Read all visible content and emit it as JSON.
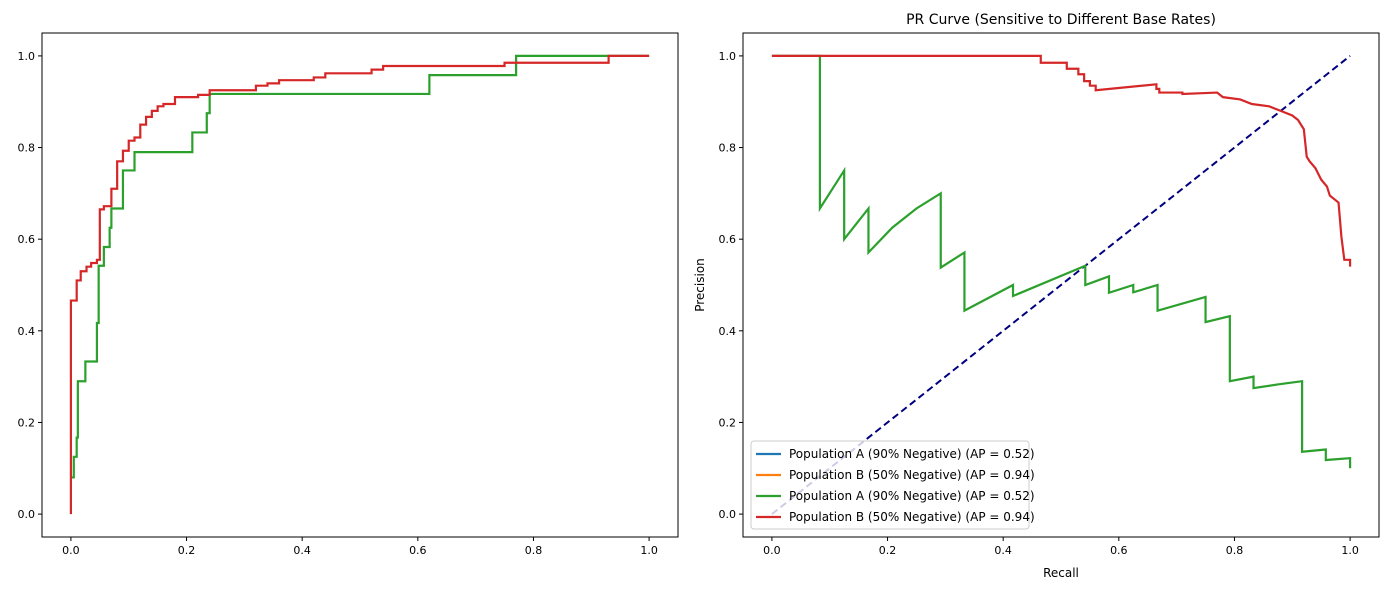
{
  "chart_data": [
    {
      "type": "line",
      "title": "",
      "xlabel": "",
      "ylabel": "",
      "xlim": [
        -0.05,
        1.05
      ],
      "ylim": [
        -0.05,
        1.05
      ],
      "xticks": [
        "0.0",
        "0.2",
        "0.4",
        "0.6",
        "0.8",
        "1.0"
      ],
      "yticks": [
        "0.0",
        "0.2",
        "0.4",
        "0.6",
        "0.8",
        "1.0"
      ],
      "grid": false,
      "series": [
        {
          "color": "#2ca02c",
          "points": [
            [
              0,
              0.08
            ],
            [
              0.005,
              0.08
            ],
            [
              0.005,
              0.125
            ],
            [
              0.01,
              0.125
            ],
            [
              0.01,
              0.167
            ],
            [
              0.012,
              0.167
            ],
            [
              0.012,
              0.29
            ],
            [
              0.025,
              0.29
            ],
            [
              0.025,
              0.333
            ],
            [
              0.045,
              0.333
            ],
            [
              0.045,
              0.417
            ],
            [
              0.048,
              0.417
            ],
            [
              0.048,
              0.542
            ],
            [
              0.057,
              0.542
            ],
            [
              0.057,
              0.583
            ],
            [
              0.067,
              0.583
            ],
            [
              0.067,
              0.625
            ],
            [
              0.07,
              0.625
            ],
            [
              0.07,
              0.667
            ],
            [
              0.09,
              0.667
            ],
            [
              0.09,
              0.75
            ],
            [
              0.11,
              0.75
            ],
            [
              0.11,
              0.79
            ],
            [
              0.21,
              0.79
            ],
            [
              0.21,
              0.833
            ],
            [
              0.235,
              0.833
            ],
            [
              0.235,
              0.875
            ],
            [
              0.24,
              0.875
            ],
            [
              0.24,
              0.917
            ],
            [
              0.62,
              0.917
            ],
            [
              0.62,
              0.958
            ],
            [
              0.77,
              0.958
            ],
            [
              0.77,
              1.0
            ],
            [
              1.0,
              1.0
            ]
          ]
        },
        {
          "color": "#d62728",
          "points": [
            [
              0,
              0
            ],
            [
              0,
              0.466
            ],
            [
              0.01,
              0.466
            ],
            [
              0.01,
              0.51
            ],
            [
              0.017,
              0.51
            ],
            [
              0.017,
              0.53
            ],
            [
              0.027,
              0.53
            ],
            [
              0.027,
              0.54
            ],
            [
              0.035,
              0.54
            ],
            [
              0.035,
              0.548
            ],
            [
              0.045,
              0.548
            ],
            [
              0.045,
              0.555
            ],
            [
              0.05,
              0.555
            ],
            [
              0.05,
              0.665
            ],
            [
              0.057,
              0.665
            ],
            [
              0.057,
              0.672
            ],
            [
              0.07,
              0.672
            ],
            [
              0.07,
              0.71
            ],
            [
              0.08,
              0.71
            ],
            [
              0.08,
              0.77
            ],
            [
              0.09,
              0.77
            ],
            [
              0.09,
              0.793
            ],
            [
              0.1,
              0.793
            ],
            [
              0.1,
              0.815
            ],
            [
              0.11,
              0.815
            ],
            [
              0.11,
              0.822
            ],
            [
              0.12,
              0.822
            ],
            [
              0.12,
              0.85
            ],
            [
              0.13,
              0.85
            ],
            [
              0.13,
              0.867
            ],
            [
              0.14,
              0.867
            ],
            [
              0.14,
              0.88
            ],
            [
              0.15,
              0.88
            ],
            [
              0.15,
              0.89
            ],
            [
              0.16,
              0.89
            ],
            [
              0.16,
              0.895
            ],
            [
              0.18,
              0.895
            ],
            [
              0.18,
              0.91
            ],
            [
              0.22,
              0.91
            ],
            [
              0.22,
              0.915
            ],
            [
              0.24,
              0.915
            ],
            [
              0.24,
              0.925
            ],
            [
              0.32,
              0.925
            ],
            [
              0.32,
              0.935
            ],
            [
              0.34,
              0.935
            ],
            [
              0.34,
              0.94
            ],
            [
              0.36,
              0.94
            ],
            [
              0.36,
              0.947
            ],
            [
              0.42,
              0.947
            ],
            [
              0.42,
              0.953
            ],
            [
              0.44,
              0.953
            ],
            [
              0.44,
              0.962
            ],
            [
              0.52,
              0.962
            ],
            [
              0.52,
              0.97
            ],
            [
              0.54,
              0.97
            ],
            [
              0.54,
              0.978
            ],
            [
              0.75,
              0.978
            ],
            [
              0.75,
              0.985
            ],
            [
              0.93,
              0.985
            ],
            [
              0.93,
              1.0
            ],
            [
              1.0,
              1.0
            ]
          ]
        }
      ]
    },
    {
      "type": "line",
      "title": "PR Curve (Sensitive to Different Base Rates)",
      "xlabel": "Recall",
      "ylabel": "Precision",
      "xlim": [
        -0.05,
        1.05
      ],
      "ylim": [
        -0.05,
        1.05
      ],
      "xticks": [
        "0.0",
        "0.2",
        "0.4",
        "0.6",
        "0.8",
        "1.0"
      ],
      "yticks": [
        "0.0",
        "0.2",
        "0.4",
        "0.6",
        "0.8",
        "1.0"
      ],
      "grid": false,
      "legend_placement": "lower-left",
      "legend": [
        {
          "label": "Population A (90% Negative) (AP = 0.52)",
          "color": "#1f77b4"
        },
        {
          "label": "Population B (50% Negative) (AP = 0.94)",
          "color": "#ff7f0e"
        },
        {
          "label": "Population A (90% Negative) (AP = 0.52)",
          "color": "#2ca02c"
        },
        {
          "label": "Population B (50% Negative) (AP = 0.94)",
          "color": "#d62728"
        }
      ],
      "reference_line": {
        "color": "#000080",
        "style": "dashed",
        "points": [
          [
            0,
            0
          ],
          [
            1,
            1
          ]
        ]
      },
      "series": [
        {
          "color": "#2ca02c",
          "points": [
            [
              0,
              1
            ],
            [
              0.083,
              1
            ],
            [
              0.083,
              0.667
            ],
            [
              0.125,
              0.75
            ],
            [
              0.125,
              0.6
            ],
            [
              0.167,
              0.667
            ],
            [
              0.167,
              0.571
            ],
            [
              0.208,
              0.625
            ],
            [
              0.25,
              0.667
            ],
            [
              0.292,
              0.7
            ],
            [
              0.292,
              0.538
            ],
            [
              0.333,
              0.571
            ],
            [
              0.333,
              0.444
            ],
            [
              0.417,
              0.5
            ],
            [
              0.417,
              0.476
            ],
            [
              0.542,
              0.542
            ],
            [
              0.542,
              0.5
            ],
            [
              0.583,
              0.519
            ],
            [
              0.583,
              0.483
            ],
            [
              0.625,
              0.5
            ],
            [
              0.625,
              0.484
            ],
            [
              0.667,
              0.5
            ],
            [
              0.667,
              0.444
            ],
            [
              0.75,
              0.474
            ],
            [
              0.75,
              0.419
            ],
            [
              0.792,
              0.432
            ],
            [
              0.792,
              0.29
            ],
            [
              0.833,
              0.3
            ],
            [
              0.833,
              0.275
            ],
            [
              0.875,
              0.283
            ],
            [
              0.917,
              0.29
            ],
            [
              0.917,
              0.136
            ],
            [
              0.958,
              0.141
            ],
            [
              0.958,
              0.118
            ],
            [
              1.0,
              0.122
            ],
            [
              1.0,
              0.1
            ]
          ]
        },
        {
          "color": "#d62728",
          "points": [
            [
              0,
              1
            ],
            [
              0.465,
              1
            ],
            [
              0.465,
              0.985
            ],
            [
              0.51,
              0.985
            ],
            [
              0.51,
              0.972
            ],
            [
              0.53,
              0.972
            ],
            [
              0.53,
              0.96
            ],
            [
              0.54,
              0.96
            ],
            [
              0.54,
              0.945
            ],
            [
              0.55,
              0.945
            ],
            [
              0.55,
              0.935
            ],
            [
              0.56,
              0.935
            ],
            [
              0.56,
              0.925
            ],
            [
              0.665,
              0.938
            ],
            [
              0.665,
              0.928
            ],
            [
              0.67,
              0.928
            ],
            [
              0.67,
              0.92
            ],
            [
              0.71,
              0.92
            ],
            [
              0.71,
              0.917
            ],
            [
              0.77,
              0.92
            ],
            [
              0.78,
              0.91
            ],
            [
              0.81,
              0.905
            ],
            [
              0.83,
              0.895
            ],
            [
              0.86,
              0.89
            ],
            [
              0.88,
              0.88
            ],
            [
              0.9,
              0.87
            ],
            [
              0.91,
              0.86
            ],
            [
              0.92,
              0.84
            ],
            [
              0.925,
              0.78
            ],
            [
              0.93,
              0.77
            ],
            [
              0.94,
              0.755
            ],
            [
              0.95,
              0.73
            ],
            [
              0.96,
              0.715
            ],
            [
              0.965,
              0.695
            ],
            [
              0.98,
              0.68
            ],
            [
              0.985,
              0.605
            ],
            [
              0.99,
              0.555
            ],
            [
              1.0,
              0.555
            ],
            [
              1.0,
              0.54
            ]
          ]
        }
      ]
    }
  ]
}
